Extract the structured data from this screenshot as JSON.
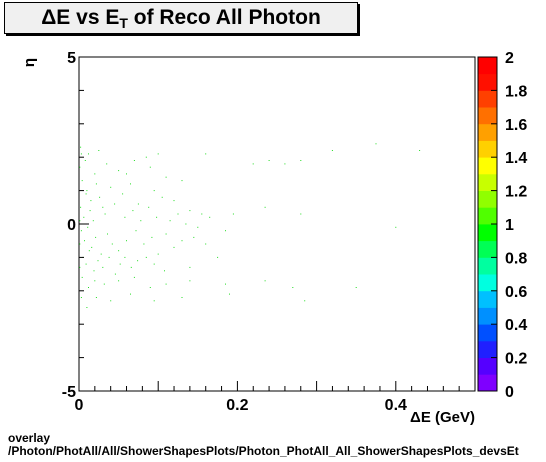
{
  "chart_data": {
    "type": "heatmap",
    "title_prefix": "ΔE vs E",
    "title_sub": "T",
    "title_suffix": " of Reco All Photon",
    "xlabel": "ΔE (GeV)",
    "ylabel": "η",
    "xlim": [
      0,
      0.5
    ],
    "ylim": [
      -5,
      5
    ],
    "x_ticks": [
      {
        "v": 0,
        "label": "0"
      },
      {
        "v": 0.2,
        "label": "0.2"
      },
      {
        "v": 0.4,
        "label": "0.4"
      }
    ],
    "y_ticks": [
      {
        "v": -5,
        "label": "-5"
      },
      {
        "v": 0,
        "label": "0"
      },
      {
        "v": 5,
        "label": "5"
      }
    ],
    "palette_ticks": [
      {
        "v": 0,
        "label": "0"
      },
      {
        "v": 0.2,
        "label": "0.2"
      },
      {
        "v": 0.4,
        "label": "0.4"
      },
      {
        "v": 0.6,
        "label": "0.6"
      },
      {
        "v": 0.8,
        "label": "0.8"
      },
      {
        "v": 1,
        "label": "1"
      },
      {
        "v": 1.2,
        "label": "1.2"
      },
      {
        "v": 1.4,
        "label": "1.4"
      },
      {
        "v": 1.6,
        "label": "1.6"
      },
      {
        "v": 1.8,
        "label": "1.8"
      },
      {
        "v": 2,
        "label": "2"
      }
    ],
    "zlim": [
      0,
      2
    ],
    "palette_colors": [
      "#7f00ff",
      "#5500ff",
      "#2020ff",
      "#0050ff",
      "#0090ff",
      "#00c0ff",
      "#00ffe0",
      "#00ffa0",
      "#00ff55",
      "#00ff00",
      "#50ff00",
      "#90ff00",
      "#c8ff00",
      "#ffff00",
      "#ffd000",
      "#ffa000",
      "#ff7000",
      "#ff4000",
      "#ff1000",
      "#ff0000"
    ],
    "grid": false,
    "points": [
      [
        0.003,
        2.1
      ],
      [
        0.008,
        1.9
      ],
      [
        0.012,
        2.1
      ],
      [
        0.02,
        1.5
      ],
      [
        0.025,
        2.2
      ],
      [
        0.035,
        1.8
      ],
      [
        0.05,
        1.6
      ],
      [
        0.06,
        1.5
      ],
      [
        0.07,
        1.9
      ],
      [
        0.085,
        2.0
      ],
      [
        0.09,
        1.7
      ],
      [
        0.1,
        2.1
      ],
      [
        0.11,
        1.4
      ],
      [
        0.13,
        1.3
      ],
      [
        0.16,
        2.1
      ],
      [
        0.22,
        1.8
      ],
      [
        0.24,
        1.9
      ],
      [
        0.26,
        1.8
      ],
      [
        0.28,
        1.9
      ],
      [
        0.32,
        2.2
      ],
      [
        0.375,
        2.4
      ],
      [
        0.43,
        2.2
      ],
      [
        0.004,
        1.3
      ],
      [
        0.01,
        1.0
      ],
      [
        0.015,
        0.7
      ],
      [
        0.022,
        1.2
      ],
      [
        0.03,
        0.5
      ],
      [
        0.04,
        1.1
      ],
      [
        0.055,
        0.9
      ],
      [
        0.065,
        1.2
      ],
      [
        0.075,
        0.6
      ],
      [
        0.095,
        1.0
      ],
      [
        0.105,
        0.8
      ],
      [
        0.12,
        0.7
      ],
      [
        0.14,
        0.4
      ],
      [
        0.155,
        0.3
      ],
      [
        0.195,
        0.3
      ],
      [
        0.235,
        0.5
      ],
      [
        0.28,
        0.3
      ],
      [
        0.4,
        -0.1
      ],
      [
        0.002,
        0.5
      ],
      [
        0.006,
        0.2
      ],
      [
        0.009,
        0.9
      ],
      [
        0.014,
        0.4
      ],
      [
        0.018,
        0.1
      ],
      [
        0.026,
        0.8
      ],
      [
        0.033,
        0.3
      ],
      [
        0.045,
        0.6
      ],
      [
        0.058,
        0.2
      ],
      [
        0.068,
        0.4
      ],
      [
        0.078,
        0.1
      ],
      [
        0.088,
        0.5
      ],
      [
        0.098,
        0.2
      ],
      [
        0.115,
        0.1
      ],
      [
        0.125,
        0.3
      ],
      [
        0.135,
        0.0
      ],
      [
        0.15,
        -0.1
      ],
      [
        0.165,
        0.2
      ],
      [
        0.185,
        -0.2
      ],
      [
        0.003,
        -0.2
      ],
      [
        0.007,
        -0.5
      ],
      [
        0.011,
        -0.1
      ],
      [
        0.016,
        -0.7
      ],
      [
        0.021,
        -0.4
      ],
      [
        0.028,
        -0.9
      ],
      [
        0.036,
        -0.3
      ],
      [
        0.042,
        -0.6
      ],
      [
        0.05,
        -0.8
      ],
      [
        0.06,
        -0.5
      ],
      [
        0.072,
        -0.2
      ],
      [
        0.082,
        -0.6
      ],
      [
        0.092,
        -0.4
      ],
      [
        0.1,
        -0.9
      ],
      [
        0.11,
        -0.3
      ],
      [
        0.12,
        -0.7
      ],
      [
        0.13,
        -0.5
      ],
      [
        0.145,
        -0.4
      ],
      [
        0.16,
        -0.6
      ],
      [
        0.005,
        -1.0
      ],
      [
        0.009,
        -1.2
      ],
      [
        0.013,
        -0.8
      ],
      [
        0.019,
        -1.4
      ],
      [
        0.024,
        -1.1
      ],
      [
        0.03,
        -1.3
      ],
      [
        0.038,
        -1.0
      ],
      [
        0.046,
        -1.5
      ],
      [
        0.052,
        -1.2
      ],
      [
        0.058,
        -1.0
      ],
      [
        0.066,
        -1.3
      ],
      [
        0.074,
        -1.1
      ],
      [
        0.085,
        -1.0
      ],
      [
        0.095,
        -1.2
      ],
      [
        0.108,
        -1.4
      ],
      [
        0.14,
        -1.3
      ],
      [
        0.175,
        -1.0
      ],
      [
        0.004,
        -1.6
      ],
      [
        0.012,
        -1.9
      ],
      [
        0.02,
        -1.7
      ],
      [
        0.032,
        -1.8
      ],
      [
        0.05,
        -1.7
      ],
      [
        0.07,
        -1.6
      ],
      [
        0.09,
        -1.9
      ],
      [
        0.11,
        -1.8
      ],
      [
        0.14,
        -1.7
      ],
      [
        0.185,
        -1.8
      ],
      [
        0.235,
        -1.7
      ],
      [
        0.27,
        -1.9
      ],
      [
        0.35,
        -1.9
      ],
      [
        0.003,
        -2.2
      ],
      [
        0.01,
        -2.5
      ],
      [
        0.022,
        -2.2
      ],
      [
        0.04,
        -2.3
      ],
      [
        0.065,
        -2.1
      ],
      [
        0.095,
        -2.3
      ],
      [
        0.13,
        -2.2
      ],
      [
        0.19,
        -2.1
      ],
      [
        0.285,
        -2.3
      ],
      [
        0.001,
        1.7
      ],
      [
        0.001,
        0.1
      ],
      [
        0.001,
        -0.6
      ],
      [
        0.001,
        -1.3
      ],
      [
        0.002,
        2.3
      ]
    ]
  },
  "footer": {
    "line1": "overlay",
    "line2": "/Photon/PhotAll/All/ShowerShapesPlots/Photon_PhotAll_All_ShowerShapesPlots_devsEt"
  }
}
